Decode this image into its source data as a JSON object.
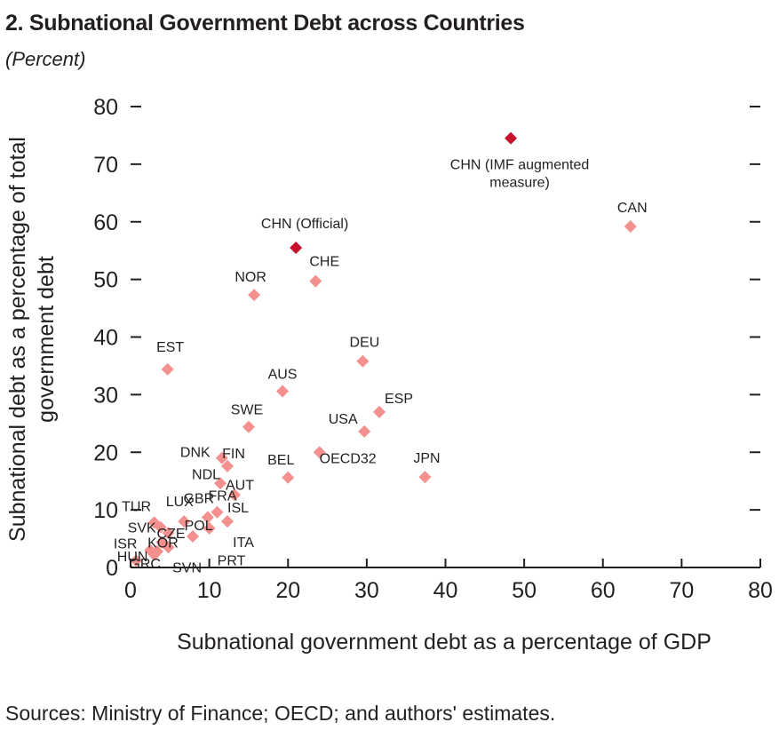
{
  "chart_data": {
    "type": "scatter",
    "title": "2. Subnational Government Debt across Countries",
    "subtitle": "(Percent)",
    "xlabel": "Subnational government debt as a percentage of GDP",
    "ylabel": "Subnational debt as a percentage of total government debt",
    "xlim": [
      0,
      80
    ],
    "ylim": [
      0,
      80
    ],
    "xticks": [
      0,
      10,
      20,
      30,
      40,
      50,
      60,
      70,
      80
    ],
    "yticks": [
      0,
      10,
      20,
      30,
      40,
      50,
      60,
      70,
      80
    ],
    "grid": false,
    "source": "Sources: Ministry of Finance; OECD; and authors' estimates.",
    "colors": {
      "china": "#c8102e",
      "other": "#f4908e",
      "axis": "#231f20"
    },
    "points": [
      {
        "label": "CHN (IMF augmented measure)",
        "x": 48.3,
        "y": 74.5,
        "highlight": true
      },
      {
        "label": "CHN (Official)",
        "x": 21.0,
        "y": 55.5,
        "highlight": true
      },
      {
        "label": "CAN",
        "x": 63.5,
        "y": 59.2
      },
      {
        "label": "CHE",
        "x": 23.5,
        "y": 49.7
      },
      {
        "label": "NOR",
        "x": 15.7,
        "y": 47.3
      },
      {
        "label": "DEU",
        "x": 29.5,
        "y": 35.8
      },
      {
        "label": "EST",
        "x": 4.7,
        "y": 34.4
      },
      {
        "label": "AUS",
        "x": 19.3,
        "y": 30.6
      },
      {
        "label": "ESP",
        "x": 31.6,
        "y": 27.0
      },
      {
        "label": "SWE",
        "x": 15.0,
        "y": 24.4
      },
      {
        "label": "USA",
        "x": 29.7,
        "y": 23.6
      },
      {
        "label": "DNK",
        "x": 11.6,
        "y": 19.0
      },
      {
        "label": "FIN",
        "x": 12.3,
        "y": 17.6
      },
      {
        "label": "OECD32",
        "x": 24.0,
        "y": 20.0
      },
      {
        "label": "BEL",
        "x": 20.0,
        "y": 15.6
      },
      {
        "label": "JPN",
        "x": 37.4,
        "y": 15.7
      },
      {
        "label": "NDL",
        "x": 11.4,
        "y": 14.6
      },
      {
        "label": "AUT",
        "x": 13.2,
        "y": 12.6
      },
      {
        "label": "FRA",
        "x": 11.0,
        "y": 9.6
      },
      {
        "label": "ISL",
        "x": 12.3,
        "y": 8.0
      },
      {
        "label": "GBR",
        "x": 9.8,
        "y": 8.7
      },
      {
        "label": "LUX",
        "x": 6.8,
        "y": 8.0
      },
      {
        "label": "POL",
        "x": 10.0,
        "y": 6.8
      },
      {
        "label": "ITA",
        "x": 7.9,
        "y": 5.4
      },
      {
        "label": "PRT",
        "x": 4.8,
        "y": 3.5
      },
      {
        "label": "TUR",
        "x": 3.0,
        "y": 7.8
      },
      {
        "label": "SVK",
        "x": 3.8,
        "y": 7.0
      },
      {
        "label": "CZE",
        "x": 4.8,
        "y": 6.0
      },
      {
        "label": "KOR",
        "x": 4.0,
        "y": 4.4
      },
      {
        "label": "ISR",
        "x": 2.5,
        "y": 3.0
      },
      {
        "label": "HUN",
        "x": 3.4,
        "y": 2.8
      },
      {
        "label": "SVN",
        "x": 3.0,
        "y": 2.2
      },
      {
        "label": "GRC",
        "x": 0.7,
        "y": 1.2
      }
    ]
  }
}
